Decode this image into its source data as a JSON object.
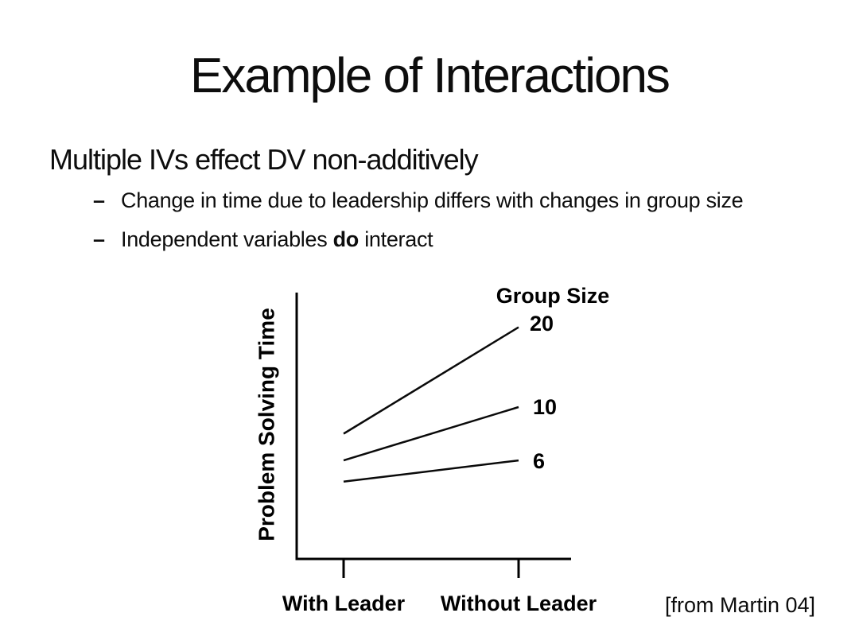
{
  "slide": {
    "title": "Example of Interactions",
    "lead": "Multiple IVs effect DV non-additively",
    "bullets": [
      {
        "marker": "–",
        "text": "Change in time due to leadership differs with changes in group size"
      },
      {
        "marker": "–",
        "text_before": "Independent variables ",
        "bold_word": "do",
        "text_after": " interact"
      }
    ],
    "citation": "[from Martin 04]"
  },
  "chart": {
    "ylabel": "Problem Solving Time",
    "legend_title": "Group Size",
    "series_labels": [
      "20",
      "10",
      "6"
    ],
    "x_labels": [
      "With Leader",
      "Without Leader"
    ]
  },
  "chart_data": {
    "type": "line",
    "title": "",
    "categories": [
      "With Leader",
      "Without Leader"
    ],
    "series": [
      {
        "name": "20",
        "values": [
          47,
          87
        ]
      },
      {
        "name": "10",
        "values": [
          37,
          57
        ]
      },
      {
        "name": "6",
        "values": [
          29,
          37
        ]
      }
    ],
    "xlabel": "",
    "ylabel": "Problem Solving Time",
    "legend_title": "Group Size",
    "legend_position": "right-of-line-ends",
    "ylim": [
      0,
      100
    ],
    "y_ticks_shown": false,
    "grid": false
  }
}
